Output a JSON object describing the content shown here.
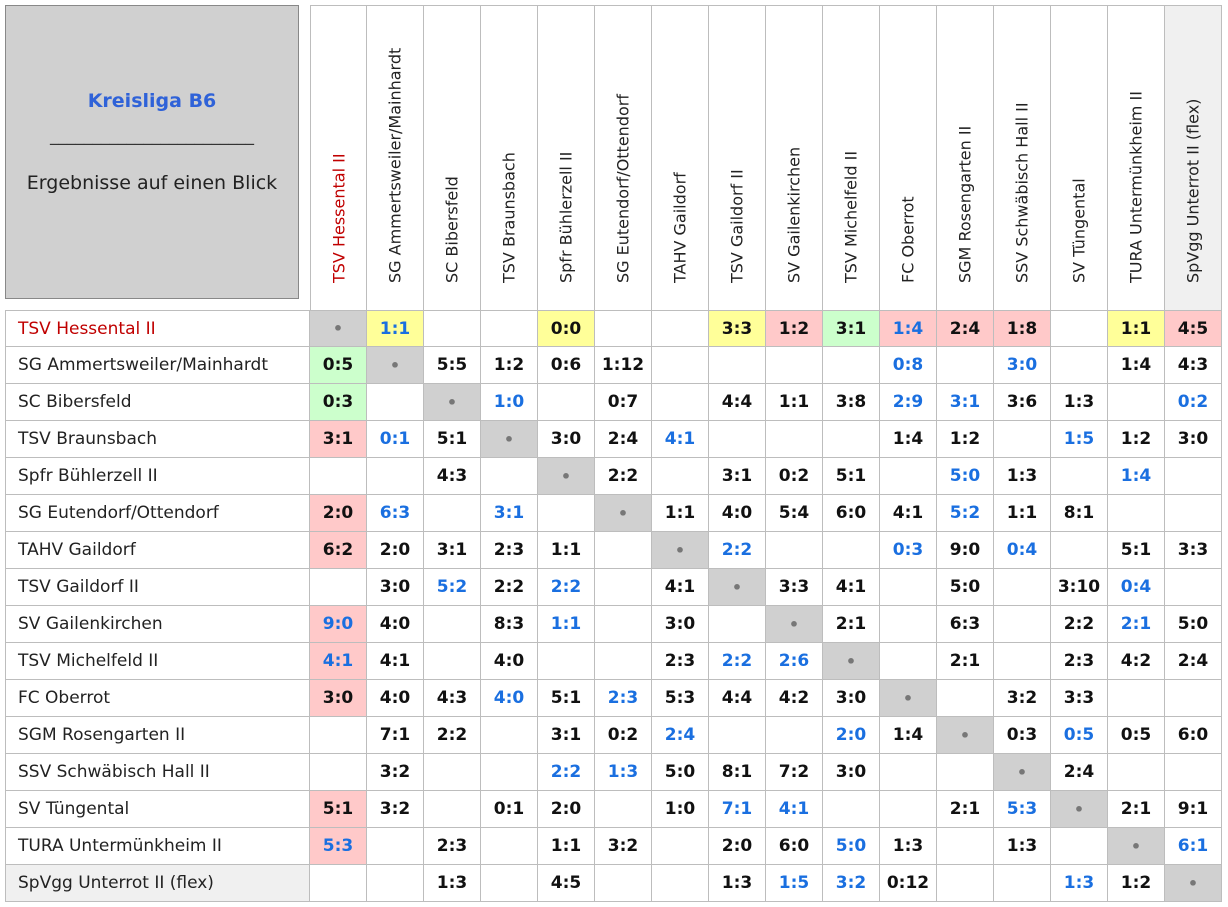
{
  "corner": {
    "title": "Kreisliga B6",
    "rule": "________________________",
    "subtitle": "Ergebnisse auf einen Blick"
  },
  "teams": [
    "TSV Hessental II",
    "SG Ammertsweiler/Mainhardt",
    "SC Bibersfeld",
    "TSV Braunsbach",
    "Spfr Bühlerzell II",
    "SG Eutendorf/Ottendorf",
    "TAHV Gaildorf",
    "TSV Gaildorf II",
    "SV Gailenkirchen",
    "TSV Michelfeld II",
    "FC Oberrot",
    "SGM Rosengarten II",
    "SSV Schwäbisch Hall II",
    "SV Tüngental",
    "TURA Untermünkheim II",
    "SpVgg Unterrot II (flex)"
  ],
  "highlight_team_color": "#c00000",
  "diagonal": "•",
  "rows": [
    [
      null,
      {
        "text": "1:1",
        "color": "blue",
        "bg": "yellow"
      },
      null,
      null,
      {
        "text": "0:0",
        "bg": "yellow"
      },
      null,
      null,
      {
        "text": "3:3",
        "bg": "yellow"
      },
      {
        "text": "1:2",
        "bg": "pink"
      },
      {
        "text": "3:1",
        "bg": "green"
      },
      {
        "text": "1:4",
        "color": "blue",
        "bg": "pink"
      },
      {
        "text": "2:4",
        "bg": "pink"
      },
      {
        "text": "1:8",
        "bg": "pink"
      },
      null,
      {
        "text": "1:1",
        "bg": "yellow"
      },
      {
        "text": "4:5",
        "bg": "pink"
      }
    ],
    [
      {
        "text": "0:5",
        "bg": "green"
      },
      null,
      {
        "text": "5:5"
      },
      {
        "text": "1:2"
      },
      {
        "text": "0:6"
      },
      {
        "text": "1:12"
      },
      null,
      null,
      null,
      null,
      {
        "text": "0:8",
        "color": "blue"
      },
      null,
      {
        "text": "3:0",
        "color": "blue"
      },
      null,
      {
        "text": "1:4"
      },
      {
        "text": "4:3"
      }
    ],
    [
      {
        "text": "0:3",
        "bg": "green"
      },
      null,
      null,
      {
        "text": "1:0",
        "color": "blue"
      },
      null,
      {
        "text": "0:7"
      },
      null,
      {
        "text": "4:4"
      },
      {
        "text": "1:1"
      },
      {
        "text": "3:8"
      },
      {
        "text": "2:9",
        "color": "blue"
      },
      {
        "text": "3:1",
        "color": "blue"
      },
      {
        "text": "3:6"
      },
      {
        "text": "1:3"
      },
      null,
      {
        "text": "0:2",
        "color": "blue"
      }
    ],
    [
      {
        "text": "3:1",
        "bg": "pink"
      },
      {
        "text": "0:1",
        "color": "blue"
      },
      {
        "text": "5:1"
      },
      null,
      {
        "text": "3:0"
      },
      {
        "text": "2:4"
      },
      {
        "text": "4:1",
        "color": "blue"
      },
      null,
      null,
      null,
      {
        "text": "1:4"
      },
      {
        "text": "1:2"
      },
      null,
      {
        "text": "1:5",
        "color": "blue"
      },
      {
        "text": "1:2"
      },
      {
        "text": "3:0"
      }
    ],
    [
      null,
      null,
      {
        "text": "4:3"
      },
      null,
      null,
      {
        "text": "2:2"
      },
      null,
      {
        "text": "3:1"
      },
      {
        "text": "0:2"
      },
      {
        "text": "5:1"
      },
      null,
      {
        "text": "5:0",
        "color": "blue"
      },
      {
        "text": "1:3"
      },
      null,
      {
        "text": "1:4",
        "color": "blue"
      },
      null
    ],
    [
      {
        "text": "2:0",
        "bg": "pink"
      },
      {
        "text": "6:3",
        "color": "blue"
      },
      null,
      {
        "text": "3:1",
        "color": "blue"
      },
      null,
      null,
      {
        "text": "1:1"
      },
      {
        "text": "4:0"
      },
      {
        "text": "5:4"
      },
      {
        "text": "6:0"
      },
      {
        "text": "4:1"
      },
      {
        "text": "5:2",
        "color": "blue"
      },
      {
        "text": "1:1"
      },
      {
        "text": "8:1"
      },
      null,
      null
    ],
    [
      {
        "text": "6:2",
        "bg": "pink"
      },
      {
        "text": "2:0"
      },
      {
        "text": "3:1"
      },
      {
        "text": "2:3"
      },
      {
        "text": "1:1"
      },
      null,
      null,
      {
        "text": "2:2",
        "color": "blue"
      },
      null,
      null,
      {
        "text": "0:3",
        "color": "blue"
      },
      {
        "text": "9:0"
      },
      {
        "text": "0:4",
        "color": "blue"
      },
      null,
      {
        "text": "5:1"
      },
      {
        "text": "3:3"
      }
    ],
    [
      null,
      {
        "text": "3:0"
      },
      {
        "text": "5:2",
        "color": "blue"
      },
      {
        "text": "2:2"
      },
      {
        "text": "2:2",
        "color": "blue"
      },
      null,
      {
        "text": "4:1"
      },
      null,
      {
        "text": "3:3"
      },
      {
        "text": "4:1"
      },
      null,
      {
        "text": "5:0"
      },
      null,
      {
        "text": "3:10"
      },
      {
        "text": "0:4",
        "color": "blue"
      },
      null
    ],
    [
      {
        "text": "9:0",
        "color": "blue",
        "bg": "pink"
      },
      {
        "text": "4:0"
      },
      null,
      {
        "text": "8:3"
      },
      {
        "text": "1:1",
        "color": "blue"
      },
      null,
      {
        "text": "3:0"
      },
      null,
      null,
      {
        "text": "2:1"
      },
      null,
      {
        "text": "6:3"
      },
      null,
      {
        "text": "2:2"
      },
      {
        "text": "2:1",
        "color": "blue"
      },
      {
        "text": "5:0"
      }
    ],
    [
      {
        "text": "4:1",
        "color": "blue",
        "bg": "pink"
      },
      {
        "text": "4:1"
      },
      null,
      {
        "text": "4:0"
      },
      null,
      null,
      {
        "text": "2:3"
      },
      {
        "text": "2:2",
        "color": "blue"
      },
      {
        "text": "2:6",
        "color": "blue"
      },
      null,
      null,
      {
        "text": "2:1"
      },
      null,
      {
        "text": "2:3"
      },
      {
        "text": "4:2"
      },
      {
        "text": "2:4"
      }
    ],
    [
      {
        "text": "3:0",
        "bg": "pink"
      },
      {
        "text": "4:0"
      },
      {
        "text": "4:3"
      },
      {
        "text": "4:0",
        "color": "blue"
      },
      {
        "text": "5:1"
      },
      {
        "text": "2:3",
        "color": "blue"
      },
      {
        "text": "5:3"
      },
      {
        "text": "4:4"
      },
      {
        "text": "4:2"
      },
      {
        "text": "3:0"
      },
      null,
      null,
      {
        "text": "3:2"
      },
      {
        "text": "3:3"
      },
      null,
      null
    ],
    [
      null,
      {
        "text": "7:1"
      },
      {
        "text": "2:2"
      },
      null,
      {
        "text": "3:1"
      },
      {
        "text": "0:2"
      },
      {
        "text": "2:4",
        "color": "blue"
      },
      null,
      null,
      {
        "text": "2:0",
        "color": "blue"
      },
      {
        "text": "1:4"
      },
      null,
      {
        "text": "0:3"
      },
      {
        "text": "0:5",
        "color": "blue"
      },
      {
        "text": "0:5"
      },
      {
        "text": "6:0"
      }
    ],
    [
      null,
      {
        "text": "3:2"
      },
      null,
      null,
      {
        "text": "2:2",
        "color": "blue"
      },
      {
        "text": "1:3",
        "color": "blue"
      },
      {
        "text": "5:0"
      },
      {
        "text": "8:1"
      },
      {
        "text": "7:2"
      },
      {
        "text": "3:0"
      },
      null,
      null,
      null,
      {
        "text": "2:4"
      },
      null,
      null
    ],
    [
      {
        "text": "5:1",
        "bg": "pink"
      },
      {
        "text": "3:2"
      },
      null,
      {
        "text": "0:1"
      },
      {
        "text": "2:0"
      },
      null,
      {
        "text": "1:0"
      },
      {
        "text": "7:1",
        "color": "blue"
      },
      {
        "text": "4:1",
        "color": "blue"
      },
      null,
      null,
      {
        "text": "2:1"
      },
      {
        "text": "5:3",
        "color": "blue"
      },
      null,
      {
        "text": "2:1"
      },
      {
        "text": "9:1"
      }
    ],
    [
      {
        "text": "5:3",
        "color": "blue",
        "bg": "pink"
      },
      null,
      {
        "text": "2:3"
      },
      null,
      {
        "text": "1:1"
      },
      {
        "text": "3:2"
      },
      null,
      {
        "text": "2:0"
      },
      {
        "text": "6:0"
      },
      {
        "text": "5:0",
        "color": "blue"
      },
      {
        "text": "1:3"
      },
      null,
      {
        "text": "1:3"
      },
      null,
      null,
      {
        "text": "6:1",
        "color": "blue"
      }
    ],
    [
      null,
      null,
      {
        "text": "1:3"
      },
      null,
      {
        "text": "4:5"
      },
      null,
      null,
      {
        "text": "1:3"
      },
      {
        "text": "1:5",
        "color": "blue"
      },
      {
        "text": "3:2",
        "color": "blue"
      },
      {
        "text": "0:12"
      },
      null,
      null,
      {
        "text": "1:3",
        "color": "blue"
      },
      {
        "text": "1:2"
      },
      null
    ]
  ]
}
